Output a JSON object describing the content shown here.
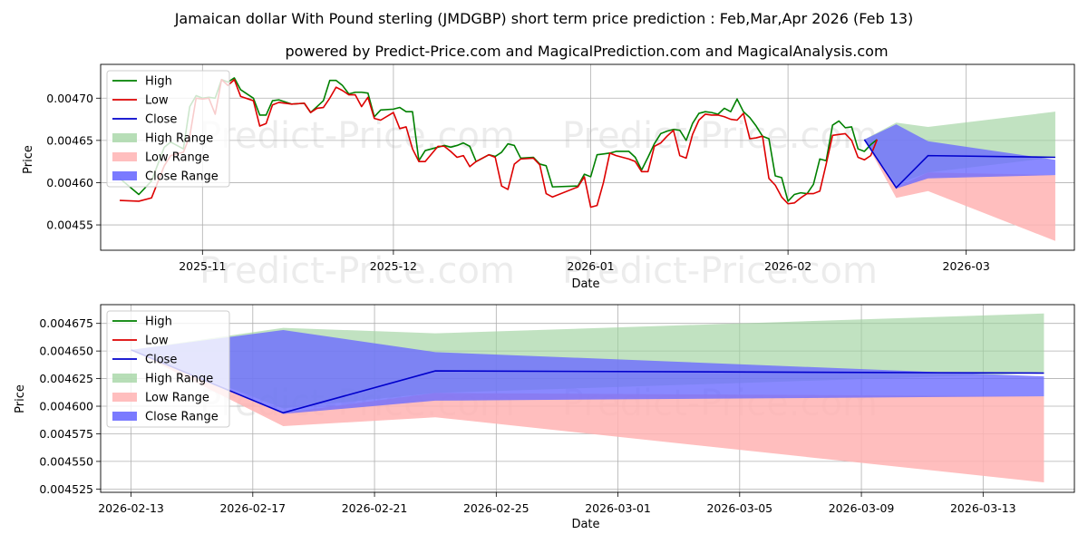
{
  "title": "Jamaican dollar With Pound sterling (JMDGBP) short term price prediction : Feb,Mar,Apr 2026 (Feb 13)",
  "subtitle": "powered by Predict-Price.com and MagicalPrediction.com and MagicalAnalysis.com",
  "watermark": "Predict-Price.com",
  "colors": {
    "high": "#008000",
    "low": "#dd0000",
    "close": "#0000cc",
    "high_range": "#9fd39f",
    "low_range": "#ffb3b3",
    "close_range": "#6b6bff"
  },
  "chart_data": [
    {
      "type": "line",
      "name": "full-history",
      "xlabel": "Date",
      "ylabel": "Price",
      "x_domain": [
        "2025-10-16",
        "2026-03-18"
      ],
      "ylim": [
        0.00452,
        0.00474
      ],
      "xticks": [
        {
          "date": "2025-11-01",
          "label": "2025-11"
        },
        {
          "date": "2025-12-01",
          "label": "2025-12"
        },
        {
          "date": "2026-01-01",
          "label": "2026-01"
        },
        {
          "date": "2026-02-01",
          "label": "2026-02"
        },
        {
          "date": "2026-03-01",
          "label": "2026-03"
        }
      ],
      "yticks": [
        {
          "v": 0.00455,
          "label": "0.00455"
        },
        {
          "v": 0.0046,
          "label": "0.00460"
        },
        {
          "v": 0.00465,
          "label": "0.00465"
        },
        {
          "v": 0.0047,
          "label": "0.00470"
        }
      ],
      "legend": [
        "High",
        "Low",
        "Close",
        "High Range",
        "Low Range",
        "Close Range"
      ],
      "history": [
        [
          "2025-10-19",
          0.004605,
          0.004579
        ],
        [
          "2025-10-22",
          0.004586,
          0.004578
        ],
        [
          "2025-10-24",
          0.004602,
          0.004582
        ],
        [
          "2025-10-26",
          0.004642,
          0.00462
        ],
        [
          "2025-10-27",
          0.004648,
          0.004632
        ],
        [
          "2025-10-29",
          0.00464,
          0.004636
        ],
        [
          "2025-10-30",
          0.00469,
          0.004655
        ],
        [
          "2025-10-31",
          0.004703,
          0.0047
        ],
        [
          "2025-11-01",
          0.0047,
          0.004699
        ],
        [
          "2025-11-02",
          0.004701,
          0.0047
        ],
        [
          "2025-11-03",
          0.0047,
          0.004681
        ],
        [
          "2025-11-04",
          0.004722,
          0.004722
        ],
        [
          "2025-11-05",
          0.004719,
          0.004715
        ],
        [
          "2025-11-06",
          0.004724,
          0.004722
        ],
        [
          "2025-11-07",
          0.00471,
          0.004702
        ],
        [
          "2025-11-09",
          0.0047,
          0.004697
        ],
        [
          "2025-11-10",
          0.00468,
          0.004667
        ],
        [
          "2025-11-11",
          0.00468,
          0.00467
        ],
        [
          "2025-11-12",
          0.004697,
          0.004692
        ],
        [
          "2025-11-13",
          0.004698,
          0.004695
        ],
        [
          "2025-11-15",
          0.004693,
          0.004693
        ],
        [
          "2025-11-17",
          0.004694,
          0.004694
        ],
        [
          "2025-11-18",
          0.004683,
          0.004683
        ],
        [
          "2025-11-19",
          0.00469,
          0.004688
        ],
        [
          "2025-11-20",
          0.004697,
          0.004689
        ],
        [
          "2025-11-21",
          0.004721,
          0.0047
        ],
        [
          "2025-11-22",
          0.004721,
          0.004713
        ],
        [
          "2025-11-23",
          0.004715,
          0.004709
        ],
        [
          "2025-11-24",
          0.004705,
          0.004704
        ],
        [
          "2025-11-25",
          0.004707,
          0.004704
        ],
        [
          "2025-11-26",
          0.004707,
          0.00469
        ],
        [
          "2025-11-27",
          0.004706,
          0.004701
        ],
        [
          "2025-11-28",
          0.004678,
          0.004676
        ],
        [
          "2025-11-29",
          0.004686,
          0.004674
        ],
        [
          "2025-12-01",
          0.004687,
          0.004683
        ],
        [
          "2025-12-02",
          0.004689,
          0.004664
        ],
        [
          "2025-12-03",
          0.004684,
          0.004666
        ],
        [
          "2025-12-04",
          0.004684,
          0.00464
        ],
        [
          "2025-12-05",
          0.004626,
          0.004625
        ],
        [
          "2025-12-06",
          0.004638,
          0.004625
        ],
        [
          "2025-12-08",
          0.004642,
          0.004643
        ],
        [
          "2025-12-09",
          0.004644,
          0.004643
        ],
        [
          "2025-12-10",
          0.004642,
          0.004637
        ],
        [
          "2025-12-11",
          0.004644,
          0.00463
        ],
        [
          "2025-12-12",
          0.004647,
          0.004632
        ],
        [
          "2025-12-13",
          0.004643,
          0.004619
        ],
        [
          "2025-12-14",
          0.004625,
          0.004625
        ],
        [
          "2025-12-16",
          0.004633,
          0.004633
        ],
        [
          "2025-12-17",
          0.004631,
          0.00463
        ],
        [
          "2025-12-18",
          0.004636,
          0.004596
        ],
        [
          "2025-12-19",
          0.004646,
          0.004592
        ],
        [
          "2025-12-20",
          0.004644,
          0.004622
        ],
        [
          "2025-12-21",
          0.004629,
          0.004628
        ],
        [
          "2025-12-23",
          0.00463,
          0.004629
        ],
        [
          "2025-12-24",
          0.004622,
          0.004621
        ],
        [
          "2025-12-25",
          0.00462,
          0.004587
        ],
        [
          "2025-12-26",
          0.004595,
          0.004583
        ],
        [
          "2025-12-30",
          0.004596,
          0.004595
        ],
        [
          "2025-12-31",
          0.00461,
          0.004607
        ],
        [
          "2026-01-01",
          0.004607,
          0.004571
        ],
        [
          "2026-01-02",
          0.004633,
          0.004573
        ],
        [
          "2026-01-03",
          0.004634,
          0.0046
        ],
        [
          "2026-01-04",
          0.004635,
          0.004635
        ],
        [
          "2026-01-05",
          0.004637,
          0.004632
        ],
        [
          "2026-01-07",
          0.004637,
          0.004628
        ],
        [
          "2026-01-08",
          0.00463,
          0.004625
        ],
        [
          "2026-01-09",
          0.004615,
          0.004613
        ],
        [
          "2026-01-10",
          0.00463,
          0.004613
        ],
        [
          "2026-01-11",
          0.004646,
          0.004643
        ],
        [
          "2026-01-12",
          0.004658,
          0.004647
        ],
        [
          "2026-01-13",
          0.004661,
          0.004655
        ],
        [
          "2026-01-14",
          0.004663,
          0.004662
        ],
        [
          "2026-01-15",
          0.004662,
          0.004632
        ],
        [
          "2026-01-16",
          0.00465,
          0.004629
        ],
        [
          "2026-01-17",
          0.00467,
          0.004657
        ],
        [
          "2026-01-18",
          0.004682,
          0.004674
        ],
        [
          "2026-01-19",
          0.004684,
          0.004681
        ],
        [
          "2026-01-20",
          0.004683,
          0.00468
        ],
        [
          "2026-01-21",
          0.004681,
          0.00468
        ],
        [
          "2026-01-22",
          0.004688,
          0.004678
        ],
        [
          "2026-01-23",
          0.004684,
          0.004675
        ],
        [
          "2026-01-24",
          0.004699,
          0.004674
        ],
        [
          "2026-01-25",
          0.004684,
          0.004682
        ],
        [
          "2026-01-26",
          0.004677,
          0.004652
        ],
        [
          "2026-01-27",
          0.004667,
          0.004653
        ],
        [
          "2026-01-28",
          0.004655,
          0.004655
        ],
        [
          "2026-01-29",
          0.004652,
          0.004605
        ],
        [
          "2026-01-30",
          0.004608,
          0.004597
        ],
        [
          "2026-01-31",
          0.004606,
          0.004583
        ],
        [
          "2026-02-01",
          0.004578,
          0.004575
        ],
        [
          "2026-02-02",
          0.004586,
          0.004576
        ],
        [
          "2026-02-03",
          0.004588,
          0.004582
        ],
        [
          "2026-02-04",
          0.004587,
          0.004587
        ],
        [
          "2026-02-05",
          0.004598,
          0.004587
        ],
        [
          "2026-02-06",
          0.004628,
          0.00459
        ],
        [
          "2026-02-07",
          0.004626,
          0.004622
        ],
        [
          "2026-02-08",
          0.004668,
          0.004656
        ],
        [
          "2026-02-09",
          0.004673,
          0.004657
        ],
        [
          "2026-02-10",
          0.004665,
          0.004658
        ],
        [
          "2026-02-11",
          0.004666,
          0.00465
        ],
        [
          "2026-02-12",
          0.00464,
          0.00463
        ],
        [
          "2026-02-13",
          0.004637,
          0.004627
        ],
        [
          "2026-02-14",
          0.004645,
          0.004632
        ],
        [
          "2026-02-15",
          0.004651,
          0.004651
        ]
      ]
    },
    {
      "type": "line",
      "name": "forecast-zoom",
      "xlabel": "Date",
      "ylabel": "Price",
      "x_domain": [
        "2026-02-12",
        "2026-03-16"
      ],
      "ylim": [
        0.004522,
        0.004692
      ],
      "xticks": [
        {
          "date": "2026-02-13",
          "label": "2026-02-13"
        },
        {
          "date": "2026-02-17",
          "label": "2026-02-17"
        },
        {
          "date": "2026-02-21",
          "label": "2026-02-21"
        },
        {
          "date": "2026-02-25",
          "label": "2026-02-25"
        },
        {
          "date": "2026-03-01",
          "label": "2026-03-01"
        },
        {
          "date": "2026-03-05",
          "label": "2026-03-05"
        },
        {
          "date": "2026-03-09",
          "label": "2026-03-09"
        },
        {
          "date": "2026-03-13",
          "label": "2026-03-13"
        }
      ],
      "yticks": [
        {
          "v": 0.004525,
          "label": "0.004525"
        },
        {
          "v": 0.00455,
          "label": "0.004550"
        },
        {
          "v": 0.004575,
          "label": "0.004575"
        },
        {
          "v": 0.0046,
          "label": "0.004600"
        },
        {
          "v": 0.004625,
          "label": "0.004625"
        },
        {
          "v": 0.00465,
          "label": "0.004650"
        },
        {
          "v": 0.004675,
          "label": "0.004675"
        }
      ],
      "legend": [
        "High",
        "Low",
        "Close",
        "High Range",
        "Low Range",
        "Close Range"
      ]
    }
  ],
  "forecast": {
    "dates": [
      "2026-02-13",
      "2026-02-18",
      "2026-02-23",
      "2026-03-15"
    ],
    "high_range": {
      "upper": [
        0.004651,
        0.004671,
        0.004666,
        0.004684
      ],
      "lower": [
        0.004651,
        0.004598,
        0.004612,
        0.00463
      ]
    },
    "low_range": {
      "upper": [
        0.004651,
        0.004594,
        0.004612,
        0.004609
      ],
      "lower": [
        0.004651,
        0.004582,
        0.00459,
        0.004531
      ]
    },
    "close_range": {
      "upper": [
        0.004651,
        0.004669,
        0.004649,
        0.004627
      ],
      "lower": [
        0.004651,
        0.004593,
        0.004605,
        0.004609
      ]
    },
    "close": [
      0.004651,
      0.004594,
      0.004632,
      0.00463
    ]
  }
}
